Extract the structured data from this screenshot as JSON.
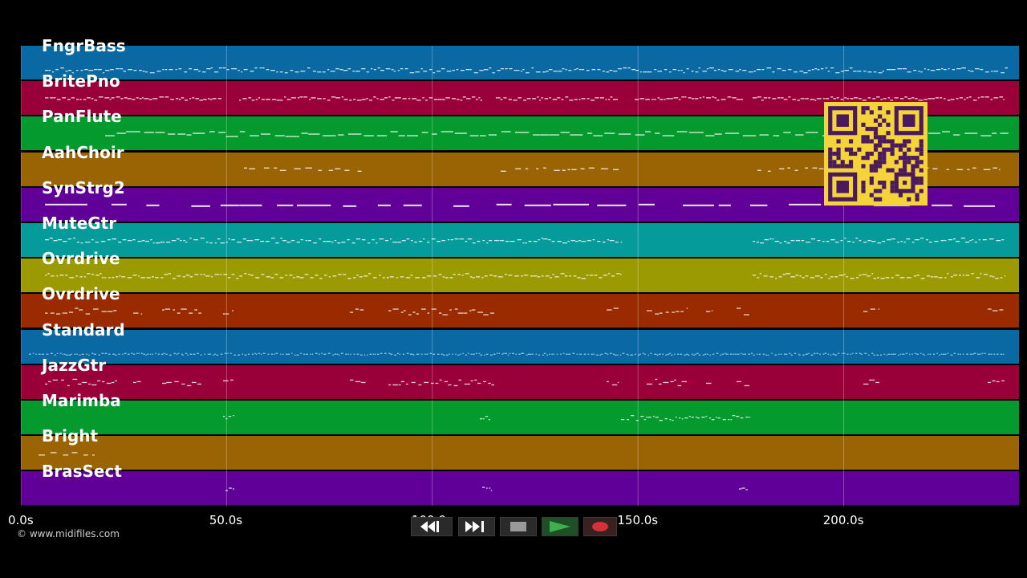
{
  "tracks": [
    {
      "name": "FngrBass",
      "color": "#0a69a3"
    },
    {
      "name": "BritePno",
      "color": "#99003a"
    },
    {
      "name": "PanFlute",
      "color": "#049a2e"
    },
    {
      "name": "AahChoir",
      "color": "#9a6303"
    },
    {
      "name": "SynStrg2",
      "color": "#600098"
    },
    {
      "name": "MuteGtr",
      "color": "#069b9b"
    },
    {
      "name": "Ovrdrive",
      "color": "#9b9a03"
    },
    {
      "name": "Ovrdrive",
      "color": "#9a2b01"
    },
    {
      "name": "Standard",
      "color": "#0a69a3"
    },
    {
      "name": "JazzGtr",
      "color": "#99003a"
    },
    {
      "name": "Marimba",
      "color": "#049a2e"
    },
    {
      "name": "Bright",
      "color": "#9a6303"
    },
    {
      "name": "BrasSect",
      "color": "#600098"
    }
  ],
  "timeline": {
    "ticks": [
      "0.0s",
      "50.0s",
      "100.0s",
      "150.0s",
      "200.0s"
    ],
    "tick_values": [
      0,
      50,
      100,
      150,
      200
    ],
    "total_seconds": 242.6
  },
  "copyright": "© www.midifiles.com",
  "transport": {
    "buttons": [
      {
        "name": "rewind-button",
        "icon": "rewind-icon"
      },
      {
        "name": "fast-forward-button",
        "icon": "fast-forward-icon"
      },
      {
        "name": "stop-button",
        "icon": "stop-icon"
      },
      {
        "name": "play-button",
        "icon": "play-icon"
      },
      {
        "name": "record-button",
        "icon": "record-icon"
      }
    ]
  },
  "qr_code": {
    "icon": "qr-code-icon",
    "color": "#f4d43a"
  }
}
